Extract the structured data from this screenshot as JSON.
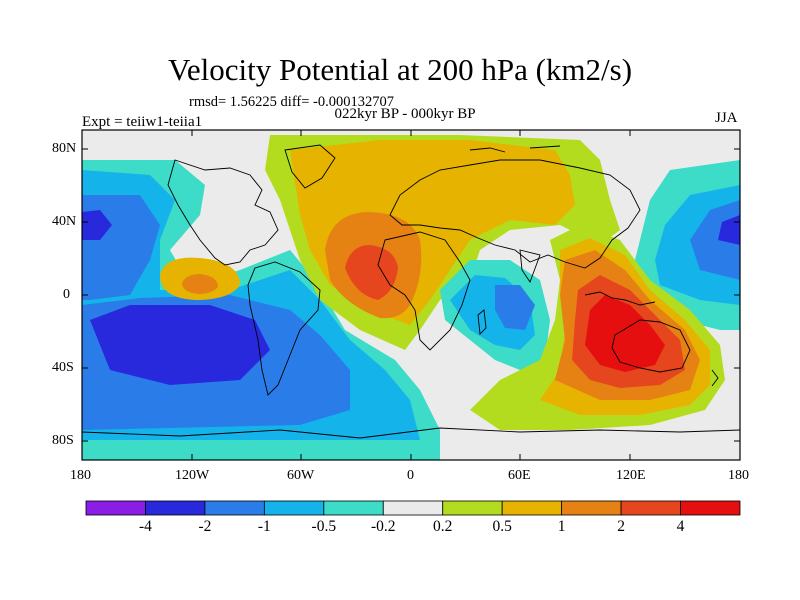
{
  "title": "Velocity Potential at 200 hPa (km2/s)",
  "stats": "rmsd= 1.56225 diff= -0.000132707",
  "subtitle": "022kyr BP - 000kyr BP",
  "experiment": "Expt = teiiw1-teiia1",
  "season": "JJA",
  "y_ticks": [
    "80N",
    "40N",
    "0",
    "40S",
    "80S"
  ],
  "x_ticks": [
    "180",
    "120W",
    "60W",
    "0",
    "60E",
    "120E",
    "180"
  ],
  "colorbar": {
    "labels": [
      "-4",
      "-2",
      "-1",
      "-0.5",
      "-0.2",
      "0.2",
      "0.5",
      "1",
      "2",
      "4"
    ],
    "colors": [
      "#8a1ee6",
      "#2828dc",
      "#2a7de8",
      "#14b4ea",
      "#3cdcc8",
      "#ebebeb",
      "#b4dc1e",
      "#e6b400",
      "#e68214",
      "#e6461e",
      "#e60f0f"
    ]
  }
}
